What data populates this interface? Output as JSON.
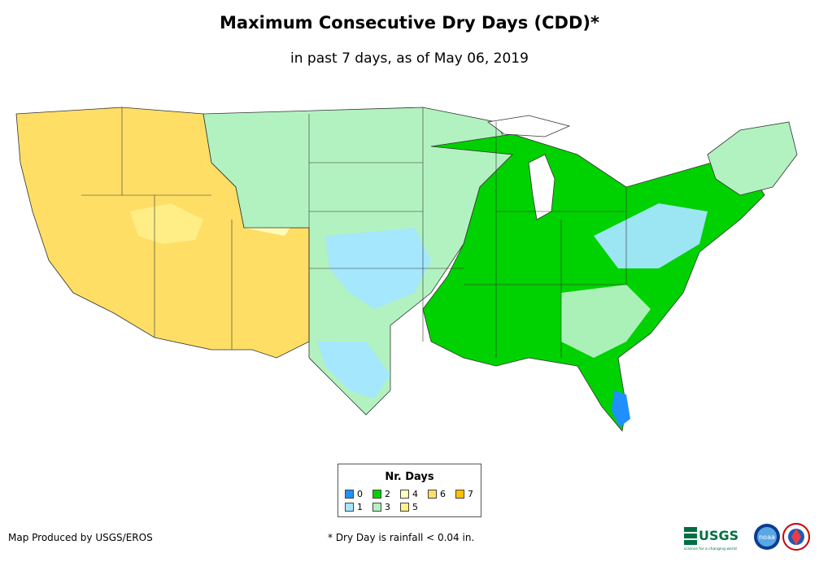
{
  "header": {
    "title": "Maximum Consecutive Dry Days (CDD)*",
    "subtitle": "in past 7 days, as of May 06, 2019"
  },
  "legend": {
    "title": "Nr. Days",
    "items": [
      {
        "label": "0",
        "color": "#1e90ff"
      },
      {
        "label": "1",
        "color": "#a4e6ff"
      },
      {
        "label": "2",
        "color": "#00d100"
      },
      {
        "label": "3",
        "color": "#b2f2c0"
      },
      {
        "label": "4",
        "color": "#ffffc0"
      },
      {
        "label": "5",
        "color": "#fff08a"
      },
      {
        "label": "6",
        "color": "#ffde66"
      },
      {
        "label": "7",
        "color": "#ffc000"
      }
    ]
  },
  "footer": {
    "credit": "Map Produced by USGS/EROS",
    "note": "* Dry Day is rainfall < 0.04 in."
  },
  "logos": {
    "usgs_label": "USGS",
    "usgs_tagline": "science for a changing world",
    "noaa_label": "noaa"
  }
}
